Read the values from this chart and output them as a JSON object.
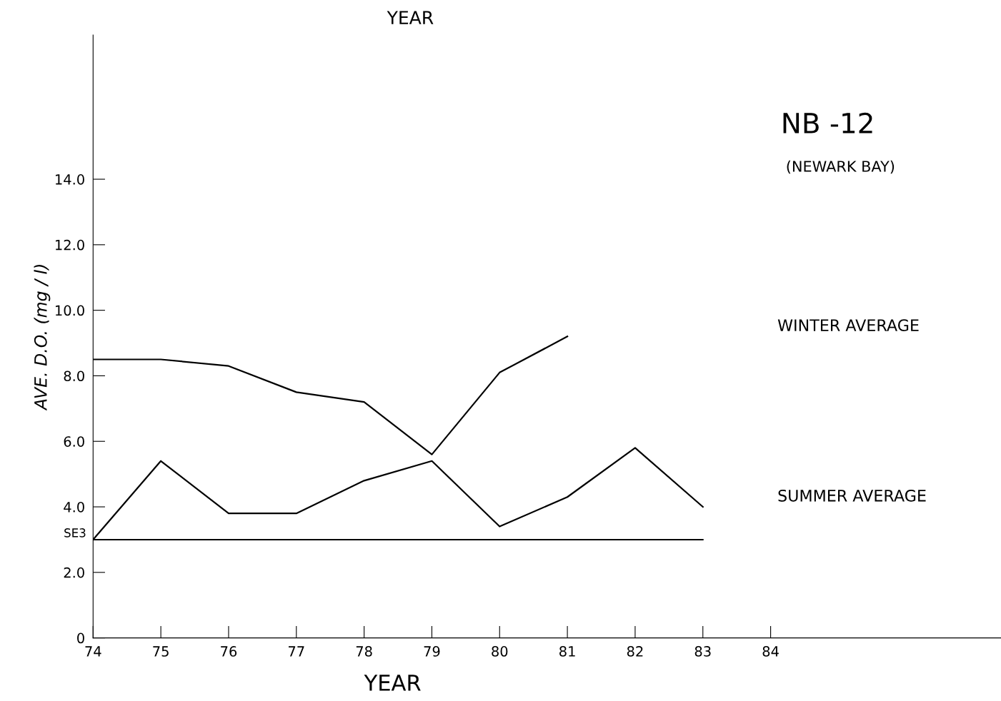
{
  "chart_data": {
    "type": "line",
    "title": "NB -12",
    "subtitle": "(NEWARK BAY)",
    "xlabel": "YEAR",
    "ylabel": "AVE. D.O. (mg / l)",
    "annotations": [
      "YEAR"
    ],
    "x": [
      74,
      75,
      76,
      77,
      78,
      79,
      80,
      81,
      82,
      83
    ],
    "series": [
      {
        "name": "WINTER AVERAGE",
        "color": "#000000",
        "values": [
          8.5,
          8.5,
          8.3,
          7.5,
          7.2,
          5.6,
          8.1,
          9.2,
          null,
          null
        ]
      },
      {
        "name": "SUMMER AVERAGE",
        "color": "#000000",
        "values": [
          3.0,
          5.4,
          3.8,
          3.8,
          4.8,
          5.4,
          3.4,
          4.3,
          5.8,
          4.0
        ]
      }
    ],
    "ref_lines": [
      {
        "axis": "y",
        "value": 3.0,
        "label": "SE3",
        "color": "#000000",
        "line_style": "solid"
      }
    ],
    "xlim": [
      74,
      87.4
    ],
    "xticks": [
      74,
      75,
      76,
      77,
      78,
      79,
      80,
      81,
      82,
      83,
      84
    ],
    "ylim": [
      0,
      18.4
    ],
    "yticks": [
      0,
      {
        "value": 2,
        "label": "2.0"
      },
      {
        "value": 4,
        "label": "4.0"
      },
      {
        "value": 6,
        "label": "6.0"
      },
      {
        "value": 8,
        "label": "8.0"
      },
      {
        "value": 10,
        "label": "10.0"
      },
      {
        "value": 12,
        "label": "12.0"
      },
      {
        "value": 14,
        "label": "14.0"
      }
    ],
    "grid": false,
    "legend": false,
    "marker": "none",
    "line_style": "solid"
  }
}
